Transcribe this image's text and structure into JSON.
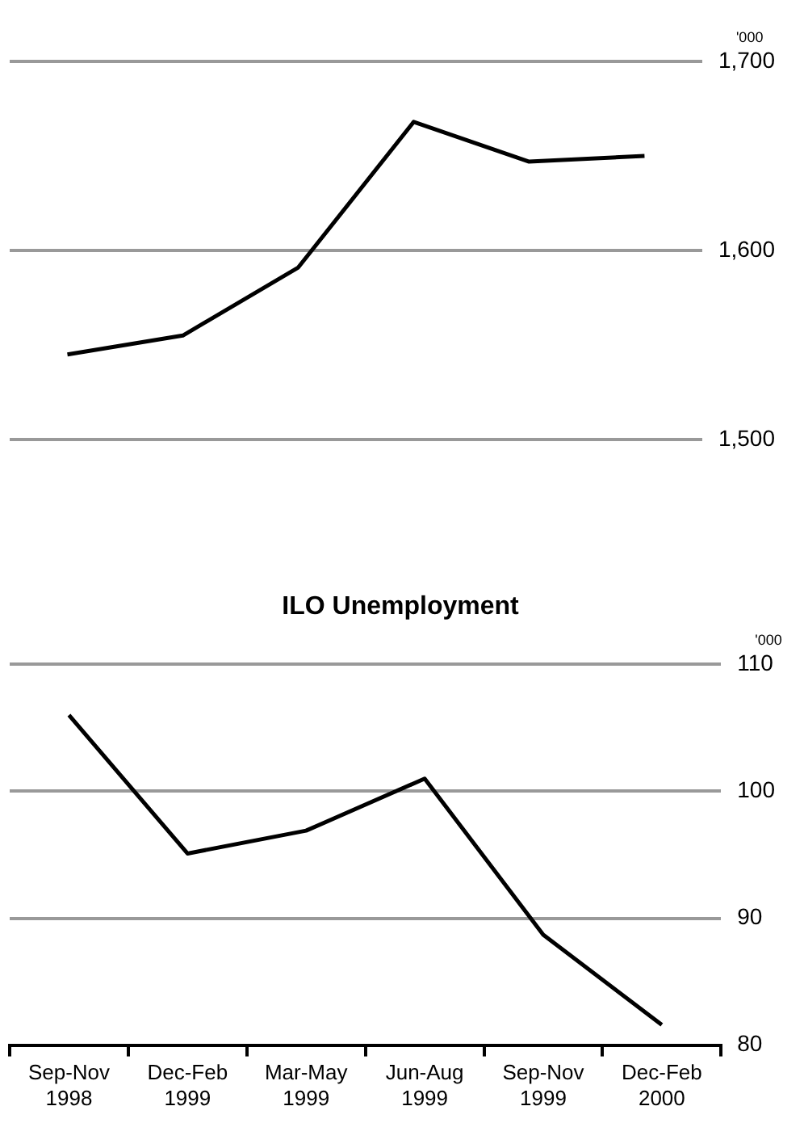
{
  "chart_data": [
    {
      "type": "line",
      "ylabel": "'000",
      "categories": [
        null,
        null,
        null,
        null,
        null,
        null
      ],
      "series": [
        {
          "color": "#000000",
          "values": [
            1545,
            1555,
            1591,
            1668,
            1647,
            1650
          ]
        }
      ],
      "ylim": [
        1500,
        1700
      ],
      "yticks": [
        {
          "value": 1500,
          "label": "1,500"
        },
        {
          "value": 1600,
          "label": "1,600"
        },
        {
          "value": 1700,
          "label": "1,700"
        }
      ],
      "grid": "y",
      "legend": false,
      "marker": "none",
      "tick_labels": "y"
    },
    {
      "type": "line",
      "title": "ILO Unemployment",
      "ylabel": "'000",
      "categories": [
        "Sep-Nov 1998",
        "Dec-Feb 1999",
        "Mar-May 1999",
        "Jun-Aug 1999",
        "Sep-Nov 1999",
        "Dec-Feb 2000"
      ],
      "series": [
        {
          "color": "#000000",
          "values": [
            106.0,
            95.1,
            96.9,
            101.0,
            88.7,
            81.6
          ]
        }
      ],
      "ylim": [
        80,
        110
      ],
      "yticks": [
        80,
        90,
        100,
        110
      ],
      "grid": "y",
      "legend": false,
      "marker": "none"
    }
  ]
}
